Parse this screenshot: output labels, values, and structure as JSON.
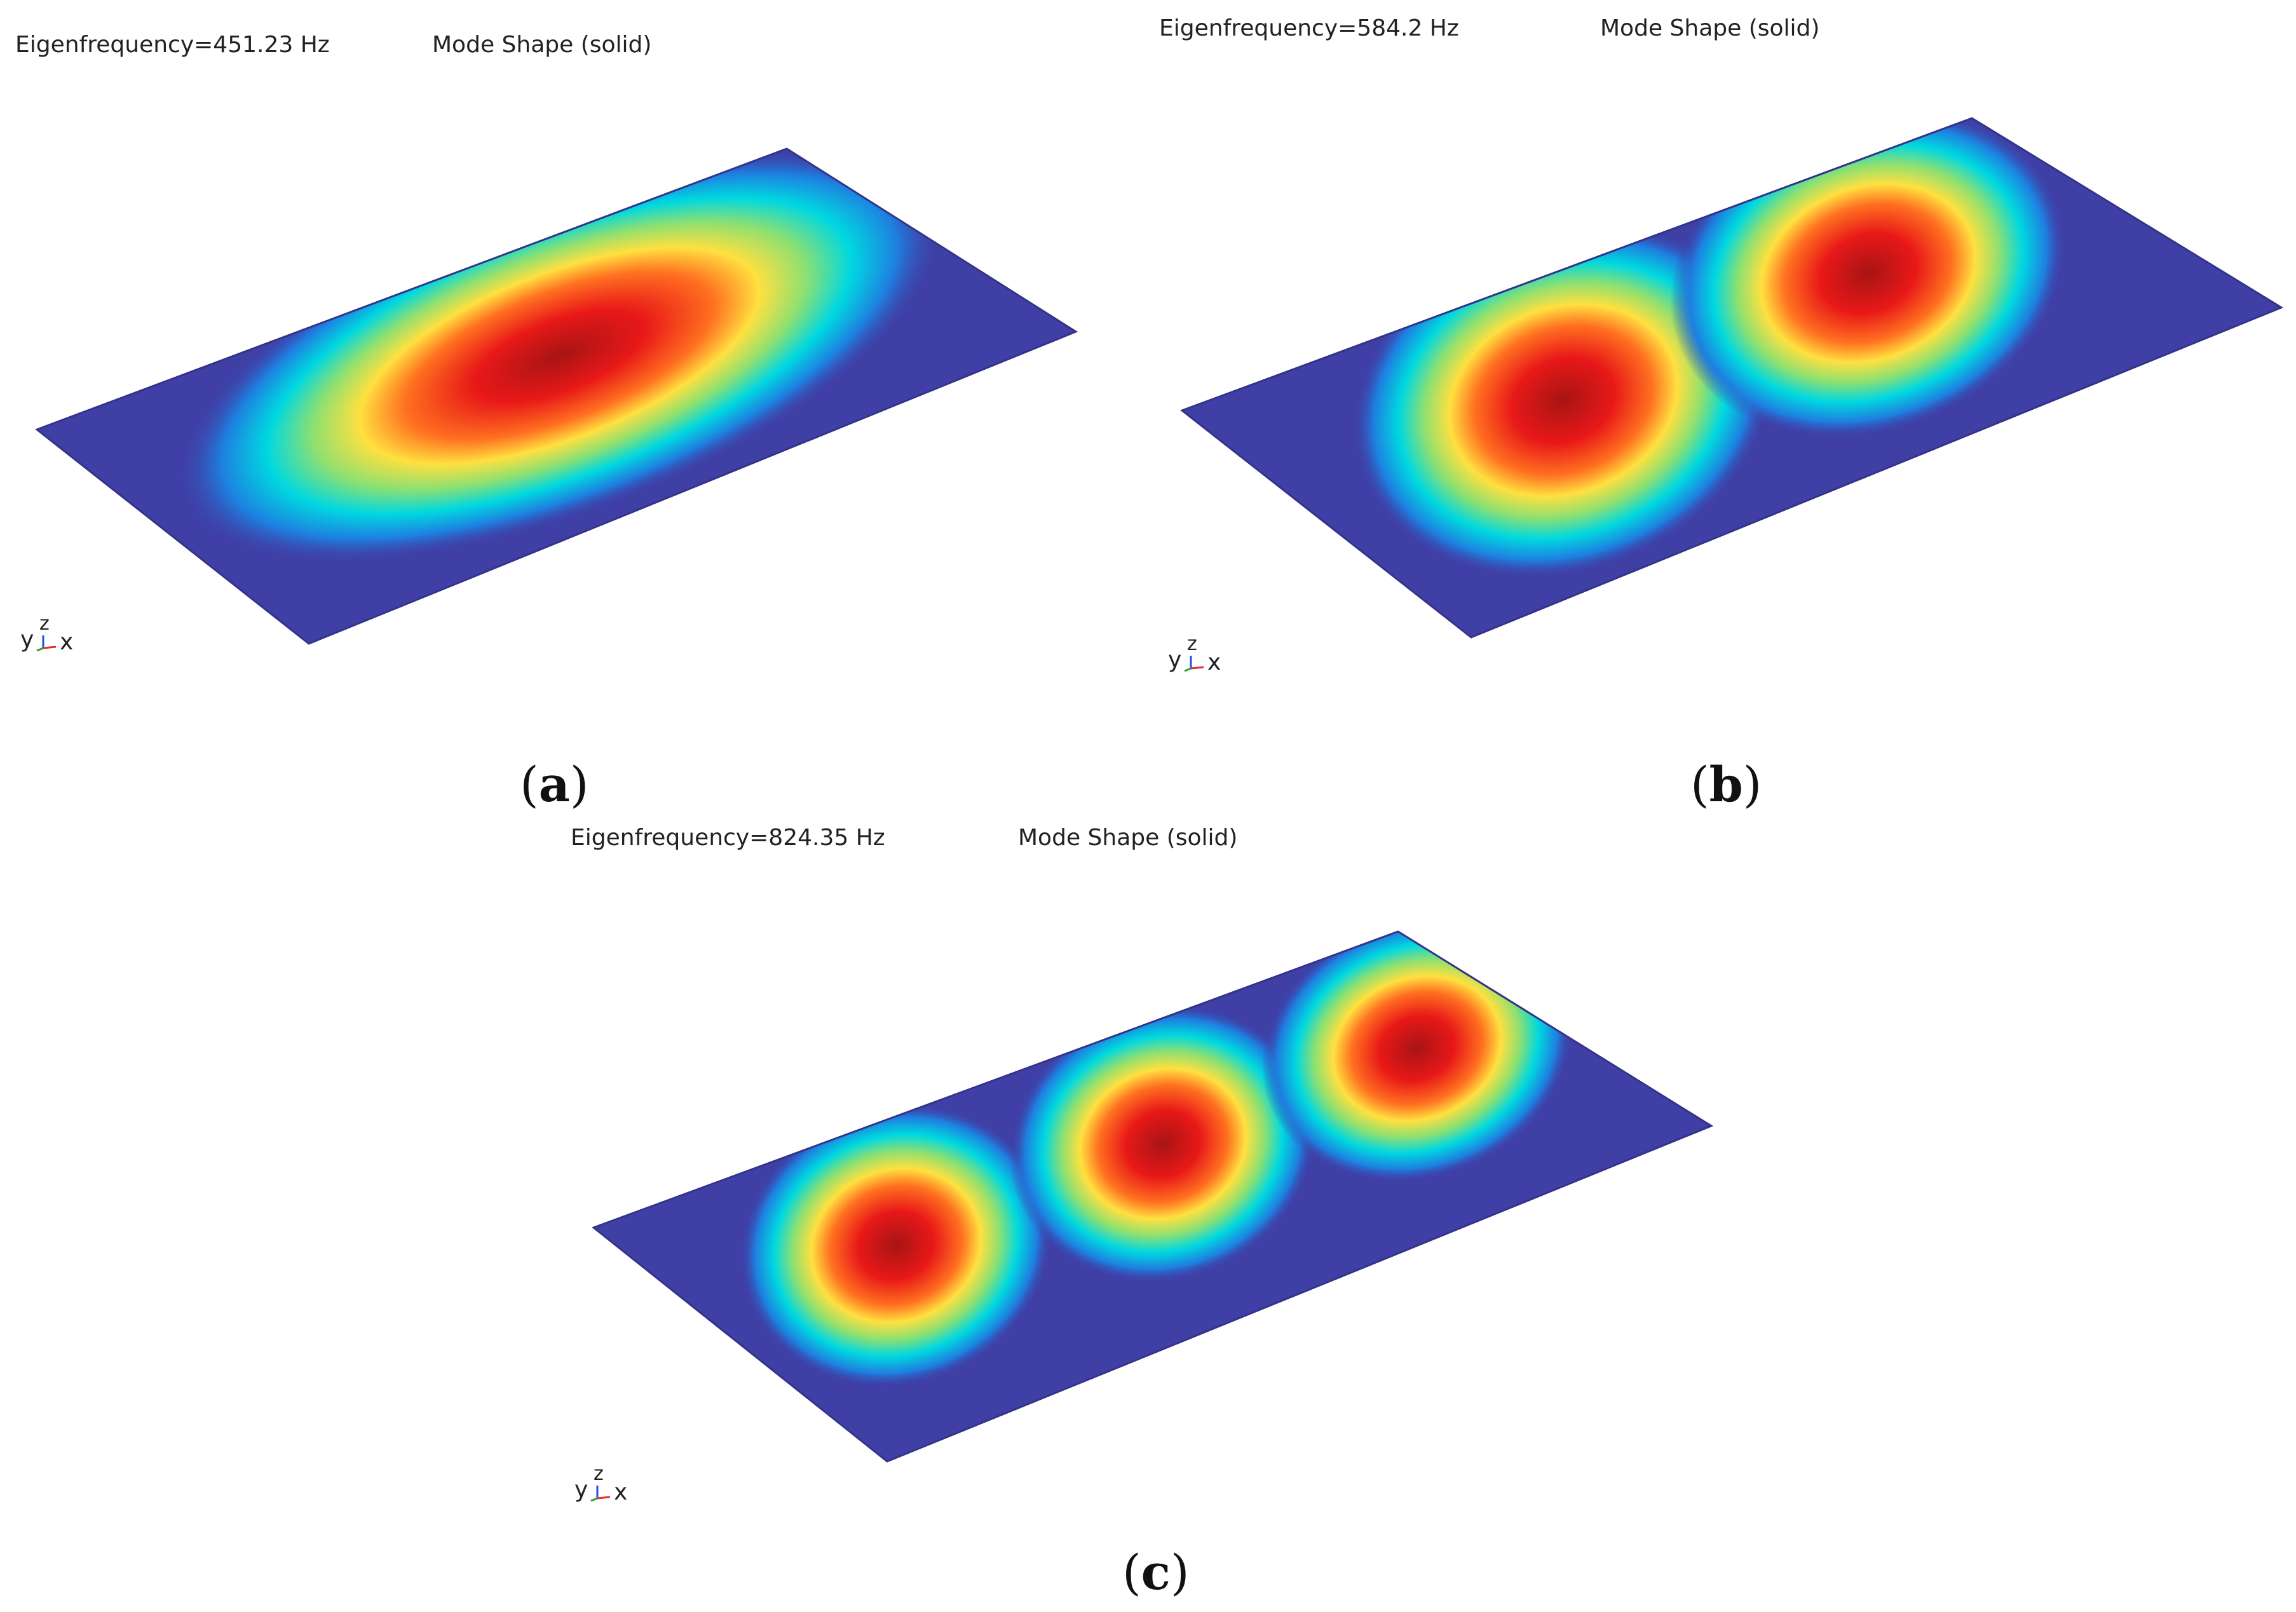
{
  "panels": [
    {
      "id": "a",
      "eigenfrequency_label": "Eigenfrequency=451.23 Hz",
      "plot_title": "Mode Shape (solid)",
      "caption_open": "(",
      "caption_letter": "a",
      "caption_close": ")",
      "axis_y": "y",
      "axis_z": "z",
      "axis_x": "x",
      "antinodes": 1
    },
    {
      "id": "b",
      "eigenfrequency_label": "Eigenfrequency=584.2 Hz",
      "plot_title": "Mode Shape (solid)",
      "caption_open": "(",
      "caption_letter": "b",
      "caption_close": ")",
      "axis_y": "y",
      "axis_z": "z",
      "axis_x": "x",
      "antinodes": 2
    },
    {
      "id": "c",
      "eigenfrequency_label": "Eigenfrequency=824.35 Hz",
      "plot_title": "Mode Shape (solid)",
      "caption_open": "(",
      "caption_letter": "c",
      "caption_close": ")",
      "axis_y": "y",
      "axis_z": "z",
      "axis_x": "x",
      "antinodes": 3
    }
  ],
  "colors": {
    "plate": "#3f3fa6",
    "colormap": [
      "#3b3ba8",
      "#1e7fe0",
      "#00d8e0",
      "#8fe070",
      "#ffe040",
      "#ff7020",
      "#e81818",
      "#b01010"
    ],
    "axis_x": "#e03030",
    "axis_y": "#30a030",
    "axis_z": "#2050e0"
  }
}
